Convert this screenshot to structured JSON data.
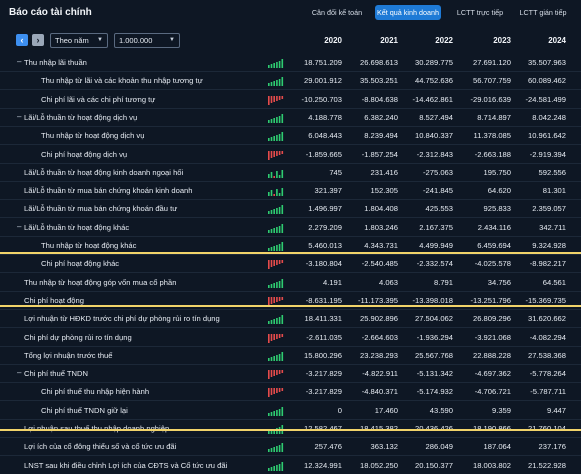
{
  "header": {
    "title": "Báo cáo tài chính",
    "tabs": [
      {
        "label": "Cân đối kế toán",
        "active": false
      },
      {
        "label": "Kết quả kinh doanh",
        "active": true
      },
      {
        "label": "LCTT trực tiếp",
        "active": false
      },
      {
        "label": "LCTT gián tiếp",
        "active": false
      }
    ]
  },
  "toolbar": {
    "period": "Theo năm",
    "unit": "1.000.000",
    "years": [
      "2020",
      "2021",
      "2022",
      "2023",
      "2024"
    ]
  },
  "colors": {
    "up": "#2ecc71",
    "down": "#e64b4b",
    "accent": "#1e7ad6",
    "highlight": "#f1d36a"
  },
  "rows": [
    {
      "label": "Thu nhập lãi thuần",
      "level": 0,
      "toggle": "–",
      "trend": "up",
      "values": [
        "18.751.209",
        "26.698.613",
        "30.289.775",
        "27.691.120",
        "35.507.963"
      ]
    },
    {
      "label": "Thu nhập từ lãi và các khoản thu nhập tương tự",
      "level": 1,
      "toggle": "",
      "trend": "up",
      "values": [
        "29.001.912",
        "35.503.251",
        "44.752.636",
        "56.707.759",
        "60.089.462"
      ]
    },
    {
      "label": "Chi phí lãi và các chi phí tương tự",
      "level": 1,
      "toggle": "",
      "trend": "down",
      "values": [
        "-10.250.703",
        "-8.804.638",
        "-14.462.861",
        "-29.016.639",
        "-24.581.499"
      ]
    },
    {
      "label": "Lãi/Lỗ thuần từ hoạt động dịch vụ",
      "level": 0,
      "toggle": "–",
      "trend": "up",
      "values": [
        "4.188.778",
        "6.382.240",
        "8.527.494",
        "8.714.897",
        "8.042.248"
      ]
    },
    {
      "label": "Thu nhập từ hoạt động dịch vụ",
      "level": 1,
      "toggle": "",
      "trend": "up",
      "values": [
        "6.048.443",
        "8.239.494",
        "10.840.337",
        "11.378.085",
        "10.961.642"
      ]
    },
    {
      "label": "Chi phí hoạt động dịch vụ",
      "level": 1,
      "toggle": "",
      "trend": "down",
      "values": [
        "-1.859.665",
        "-1.857.254",
        "-2.312.843",
        "-2.663.188",
        "-2.919.394"
      ]
    },
    {
      "label": "Lãi/Lỗ thuần từ hoạt động kinh doanh ngoại hối",
      "level": 0,
      "toggle": "",
      "trend": "mixed",
      "values": [
        "745",
        "231.416",
        "-275.063",
        "195.750",
        "592.556"
      ]
    },
    {
      "label": "Lãi/Lỗ thuần từ mua bán chứng khoán kinh doanh",
      "level": 0,
      "toggle": "",
      "trend": "mixed",
      "values": [
        "321.397",
        "152.305",
        "-241.845",
        "64.620",
        "81.301"
      ]
    },
    {
      "label": "Lãi/Lỗ thuần từ mua bán chứng khoán đầu tư",
      "level": 0,
      "toggle": "",
      "trend": "up",
      "values": [
        "1.496.997",
        "1.804.408",
        "425.553",
        "925.833",
        "2.359.057"
      ]
    },
    {
      "label": "Lãi/Lỗ thuần từ hoạt động khác",
      "level": 0,
      "toggle": "–",
      "trend": "up",
      "values": [
        "2.279.209",
        "1.803.246",
        "2.167.375",
        "2.434.116",
        "342.711"
      ]
    },
    {
      "label": "Thu nhập từ hoạt động khác",
      "level": 1,
      "toggle": "",
      "trend": "up",
      "values": [
        "5.460.013",
        "4.343.731",
        "4.499.949",
        "6.459.694",
        "9.324.928"
      ]
    },
    {
      "label": "Chi phí hoạt động khác",
      "level": 1,
      "toggle": "",
      "trend": "down",
      "values": [
        "-3.180.804",
        "-2.540.485",
        "-2.332.574",
        "-4.025.578",
        "-8.982.217"
      ]
    },
    {
      "label": "Thu nhập từ hoạt động góp vốn mua cổ phần",
      "level": 0,
      "toggle": "",
      "trend": "up",
      "values": [
        "4.191",
        "4.063",
        "8.791",
        "34.756",
        "64.561"
      ]
    },
    {
      "label": "Chi phí hoạt động",
      "level": 0,
      "toggle": "",
      "trend": "down",
      "values": [
        "-8.631.195",
        "-11.173.395",
        "-13.398.018",
        "-13.251.796",
        "-15.369.735"
      ]
    },
    {
      "label": "Lợi nhuận từ HĐKD trước chi phí dự phòng rủi ro tín dụng",
      "level": 0,
      "toggle": "",
      "trend": "up",
      "values": [
        "18.411.331",
        "25.902.896",
        "27.504.062",
        "26.809.296",
        "31.620.662"
      ]
    },
    {
      "label": "Chi phí dự phòng rủi ro tín dụng",
      "level": 0,
      "toggle": "",
      "trend": "down",
      "values": [
        "-2.611.035",
        "-2.664.603",
        "-1.936.294",
        "-3.921.068",
        "-4.082.294"
      ]
    },
    {
      "label": "Tổng lợi nhuận trước thuế",
      "level": 0,
      "toggle": "",
      "trend": "up",
      "values": [
        "15.800.296",
        "23.238.293",
        "25.567.768",
        "22.888.228",
        "27.538.368"
      ]
    },
    {
      "label": "Chi phí thuế TNDN",
      "level": 0,
      "toggle": "–",
      "trend": "down",
      "values": [
        "-3.217.829",
        "-4.822.911",
        "-5.131.342",
        "-4.697.362",
        "-5.778.264"
      ]
    },
    {
      "label": "Chi phí thuế thu nhập hiện hành",
      "level": 1,
      "toggle": "",
      "trend": "down",
      "values": [
        "-3.217.829",
        "-4.840.371",
        "-5.174.932",
        "-4.706.721",
        "-5.787.711"
      ]
    },
    {
      "label": "Chi phí thuế TNDN giữ lại",
      "level": 1,
      "toggle": "",
      "trend": "up",
      "values": [
        "0",
        "17.460",
        "43.590",
        "9.359",
        "9.447"
      ]
    },
    {
      "label": "Lợi nhuận sau thuế thu nhập doanh nghiệp",
      "level": 0,
      "toggle": "",
      "trend": "up",
      "values": [
        "12.582.467",
        "18.415.382",
        "20.436.426",
        "18.190.866",
        "21.760.104"
      ]
    },
    {
      "label": "Lợi ích của cổ đông thiểu số và cổ tức ưu đãi",
      "level": 0,
      "toggle": "",
      "trend": "up",
      "values": [
        "257.476",
        "363.132",
        "286.049",
        "187.064",
        "237.176"
      ]
    },
    {
      "label": "LNST sau khi điều chỉnh Lợi ích của CĐTS và Cổ tức ưu đãi",
      "level": 0,
      "toggle": "",
      "trend": "up",
      "values": [
        "12.324.991",
        "18.052.250",
        "20.150.377",
        "18.003.802",
        "21.522.928"
      ]
    }
  ]
}
